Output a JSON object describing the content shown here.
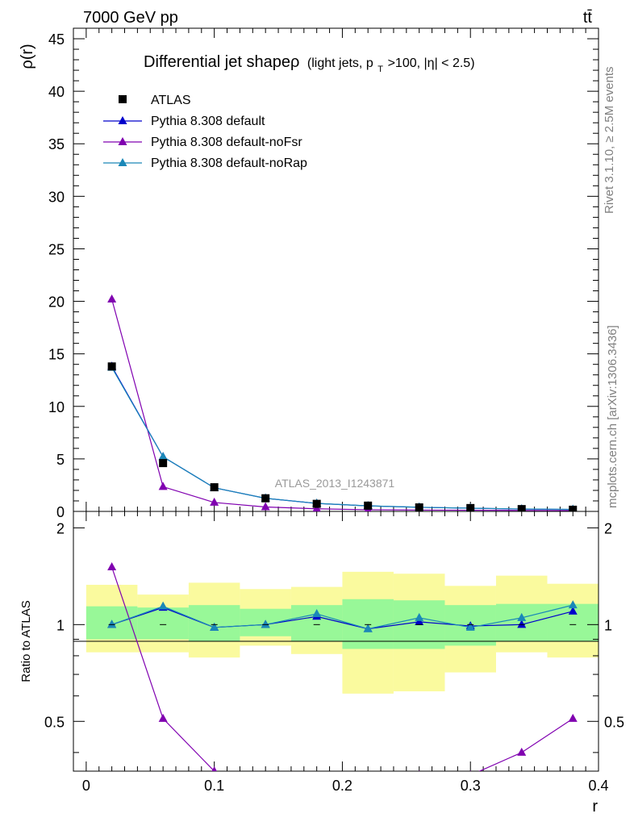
{
  "header": {
    "energy": "7000 GeV pp",
    "process": "tt̄"
  },
  "side": {
    "rivet": "Rivet 3.1.10, ≥ 2.5M events",
    "mcplots": "mcplots.cern.ch [arXiv:1306.3436]"
  },
  "legend": {
    "title_main": "Differential jet shapeρ",
    "title_sub_prefix": "(light jets, p",
    "title_sub_subscript": "T",
    "title_sub_suffix": ">100, |η| < 2.5)",
    "entries": [
      "ATLAS",
      "Pythia 8.308 default",
      "Pythia 8.308 default-noFsr",
      "Pythia 8.308 default-noRap"
    ]
  },
  "watermark": "ATLAS_2013_I1243871",
  "colors": {
    "data": "#000000",
    "default": "#0000cc",
    "noFsr": "#8000b0",
    "noRap": "#1a88b8",
    "band_inner": "#98f898",
    "band_outer": "#fafa9e"
  },
  "chart_data": [
    {
      "type": "line",
      "ylabel": "ρ(r)",
      "xlim": [
        -0.01,
        0.4
      ],
      "ylim": [
        0,
        46
      ],
      "yticks": [
        0,
        5,
        10,
        15,
        20,
        25,
        30,
        35,
        40,
        45
      ],
      "x": [
        0.02,
        0.06,
        0.1,
        0.14,
        0.18,
        0.22,
        0.26,
        0.3,
        0.34,
        0.38
      ],
      "series": [
        {
          "name": "ATLAS",
          "values": [
            13.8,
            4.6,
            2.3,
            1.25,
            0.72,
            0.55,
            0.38,
            0.32,
            0.22,
            0.16
          ]
        },
        {
          "name": "Pythia 8.308 default",
          "values": [
            13.8,
            5.2,
            2.25,
            1.25,
            0.76,
            0.53,
            0.39,
            0.31,
            0.22,
            0.18
          ]
        },
        {
          "name": "Pythia 8.308 default-noFsr",
          "values": [
            20.2,
            2.35,
            0.85,
            0.42,
            0.25,
            0.16,
            0.13,
            0.11,
            0.09,
            0.08
          ]
        },
        {
          "name": "Pythia 8.308 default-noRap",
          "values": [
            13.7,
            5.2,
            2.25,
            1.25,
            0.77,
            0.53,
            0.4,
            0.31,
            0.23,
            0.19
          ]
        }
      ]
    },
    {
      "type": "line",
      "ylabel": "Ratio to ATLAS",
      "xlabel": "r",
      "xlim": [
        -0.01,
        0.4
      ],
      "ylim": [
        0.35,
        2.25
      ],
      "yscale": "log",
      "yticks": [
        0.5,
        1,
        2
      ],
      "xticks": [
        0,
        0.1,
        0.2,
        0.3,
        0.4
      ],
      "x": [
        0.02,
        0.06,
        0.1,
        0.14,
        0.18,
        0.22,
        0.26,
        0.3,
        0.34,
        0.38
      ],
      "band_edges": [
        0,
        0.04,
        0.08,
        0.12,
        0.16,
        0.2,
        0.24,
        0.28,
        0.32,
        0.36,
        0.4
      ],
      "band_inner": [
        [
          0.9,
          1.14
        ],
        [
          0.9,
          1.13
        ],
        [
          0.89,
          1.15
        ],
        [
          0.92,
          1.12
        ],
        [
          0.89,
          1.15
        ],
        [
          0.84,
          1.2
        ],
        [
          0.84,
          1.19
        ],
        [
          0.86,
          1.15
        ],
        [
          0.89,
          1.16
        ],
        [
          0.89,
          1.16
        ]
      ],
      "band_outer": [
        [
          0.82,
          1.33
        ],
        [
          0.82,
          1.24
        ],
        [
          0.79,
          1.35
        ],
        [
          0.86,
          1.29
        ],
        [
          0.81,
          1.31
        ],
        [
          0.61,
          1.46
        ],
        [
          0.62,
          1.44
        ],
        [
          0.71,
          1.32
        ],
        [
          0.82,
          1.42
        ],
        [
          0.79,
          1.34
        ]
      ],
      "series": [
        {
          "name": "Pythia 8.308 default",
          "values": [
            1.0,
            1.13,
            0.98,
            1.0,
            1.06,
            0.97,
            1.02,
            0.99,
            1.0,
            1.1
          ]
        },
        {
          "name": "Pythia 8.308 default-noFsr",
          "values": [
            1.51,
            0.51,
            0.35,
            0.32,
            0.32,
            0.3,
            0.34,
            0.34,
            0.4,
            0.51
          ]
        },
        {
          "name": "Pythia 8.308 default-noRap",
          "values": [
            1.0,
            1.14,
            0.98,
            1.0,
            1.08,
            0.97,
            1.05,
            0.98,
            1.05,
            1.15
          ]
        }
      ]
    }
  ]
}
